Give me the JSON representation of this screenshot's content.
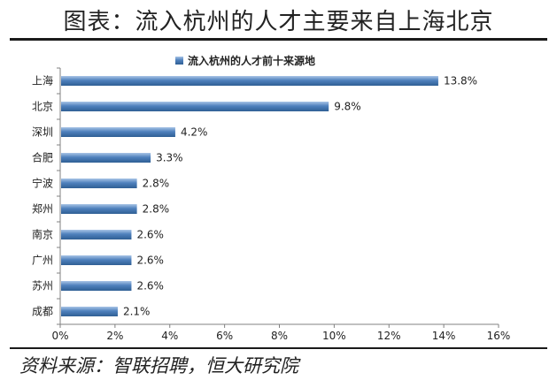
{
  "title": "图表：流入杭州的人才主要来自上海北京",
  "source": "资料来源：智联招聘，恒大研究院",
  "colors": {
    "bar": "#4f81bd",
    "bar_dark": "#2f5f94",
    "bar_light": "#a8c4e6"
  },
  "chart_data": {
    "type": "bar",
    "orientation": "horizontal",
    "legend": "流入杭州的人才前十来源地",
    "legend_position": "top",
    "categories": [
      "上海",
      "北京",
      "深圳",
      "合肥",
      "宁波",
      "郑州",
      "南京",
      "广州",
      "苏州",
      "成都"
    ],
    "values": [
      13.8,
      9.8,
      4.2,
      3.3,
      2.8,
      2.8,
      2.6,
      2.6,
      2.6,
      2.1
    ],
    "value_labels": [
      "13.8%",
      "9.8%",
      "4.2%",
      "3.3%",
      "2.8%",
      "2.8%",
      "2.6%",
      "2.6%",
      "2.6%",
      "2.1%"
    ],
    "xlim": [
      0,
      16
    ],
    "xticks": [
      "0%",
      "2%",
      "4%",
      "6%",
      "8%",
      "10%",
      "12%",
      "14%",
      "16%"
    ],
    "grid": false
  }
}
